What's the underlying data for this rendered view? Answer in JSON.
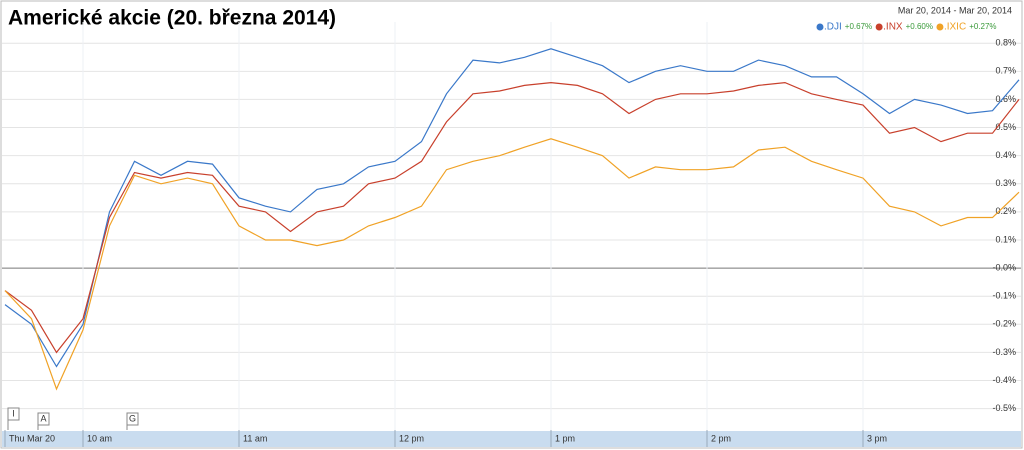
{
  "chart_data": {
    "type": "line",
    "title": "Americké akcie (20. března 2014)",
    "date_range": "Mar 20, 2014  -  Mar 20, 2014",
    "x": [
      9.5,
      9.67,
      9.83,
      10,
      10.17,
      10.33,
      10.5,
      10.67,
      10.83,
      11,
      11.17,
      11.33,
      11.5,
      11.67,
      11.83,
      12,
      12.17,
      12.33,
      12.5,
      12.67,
      12.83,
      13,
      13.17,
      13.33,
      13.5,
      13.67,
      13.83,
      14,
      14.17,
      14.33,
      14.5,
      14.67,
      14.83,
      15,
      15.17,
      15.33,
      15.5,
      15.67,
      15.83,
      16
    ],
    "series": [
      {
        "name": ".DJI",
        "change": "+0.67%",
        "color": "#3a78c9",
        "values": [
          -0.13,
          -0.2,
          -0.35,
          -0.2,
          0.2,
          0.38,
          0.33,
          0.38,
          0.37,
          0.25,
          0.22,
          0.2,
          0.28,
          0.3,
          0.36,
          0.38,
          0.45,
          0.62,
          0.74,
          0.73,
          0.75,
          0.78,
          0.75,
          0.72,
          0.66,
          0.7,
          0.72,
          0.7,
          0.7,
          0.74,
          0.72,
          0.68,
          0.68,
          0.62,
          0.55,
          0.6,
          0.58,
          0.55,
          0.56,
          0.67
        ]
      },
      {
        "name": ".INX",
        "change": "+0.60%",
        "color": "#c8402c",
        "values": [
          -0.08,
          -0.15,
          -0.3,
          -0.18,
          0.18,
          0.34,
          0.32,
          0.34,
          0.33,
          0.22,
          0.2,
          0.13,
          0.2,
          0.22,
          0.3,
          0.32,
          0.38,
          0.52,
          0.62,
          0.63,
          0.65,
          0.66,
          0.65,
          0.62,
          0.55,
          0.6,
          0.62,
          0.62,
          0.63,
          0.65,
          0.66,
          0.62,
          0.6,
          0.58,
          0.48,
          0.5,
          0.45,
          0.48,
          0.48,
          0.6
        ]
      },
      {
        "name": ".IXIC",
        "change": "+0.27%",
        "color": "#f0a226",
        "values": [
          -0.08,
          -0.18,
          -0.43,
          -0.22,
          0.15,
          0.33,
          0.3,
          0.32,
          0.3,
          0.15,
          0.1,
          0.1,
          0.08,
          0.1,
          0.15,
          0.18,
          0.22,
          0.35,
          0.38,
          0.4,
          0.43,
          0.46,
          0.43,
          0.4,
          0.32,
          0.36,
          0.35,
          0.35,
          0.36,
          0.42,
          0.43,
          0.38,
          0.35,
          0.32,
          0.22,
          0.2,
          0.15,
          0.18,
          0.18,
          0.27
        ]
      }
    ],
    "xlim": [
      9.5,
      16
    ],
    "xticks": [
      {
        "value": 9.5,
        "label": "Thu Mar 20"
      },
      {
        "value": 10,
        "label": "10 am"
      },
      {
        "value": 11,
        "label": "11 am"
      },
      {
        "value": 12,
        "label": "12 pm"
      },
      {
        "value": 13,
        "label": "1 pm"
      },
      {
        "value": 14,
        "label": "2 pm"
      },
      {
        "value": 15,
        "label": "3 pm"
      }
    ],
    "ylim": [
      -0.576,
      0.847
    ],
    "yticks": [
      {
        "value": 0.8,
        "label": "0.8%"
      },
      {
        "value": 0.7,
        "label": "0.7%"
      },
      {
        "value": 0.6,
        "label": "0.6%"
      },
      {
        "value": 0.5,
        "label": "0.5%"
      },
      {
        "value": 0.4,
        "label": "0.4%"
      },
      {
        "value": 0.3,
        "label": "0.3%"
      },
      {
        "value": 0.2,
        "label": "0.2%"
      },
      {
        "value": 0.1,
        "label": "0.1%"
      },
      {
        "value": 0,
        "label": "-0.0%"
      },
      {
        "value": -0.1,
        "label": "-0.1%"
      },
      {
        "value": -0.2,
        "label": "-0.2%"
      },
      {
        "value": -0.3,
        "label": "-0.3%"
      },
      {
        "value": -0.4,
        "label": "-0.4%"
      },
      {
        "value": -0.5,
        "label": "-0.5%"
      }
    ],
    "flags": [
      "I",
      "A",
      "G"
    ],
    "grid": true
  }
}
